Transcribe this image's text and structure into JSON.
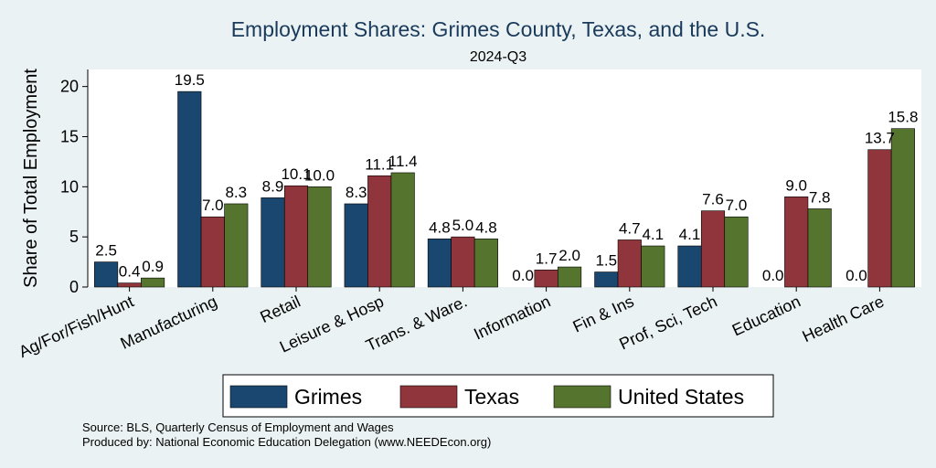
{
  "chart_data": {
    "type": "bar",
    "title": "Employment Shares: Grimes County, Texas, and the U.S.",
    "subtitle": "2024-Q3",
    "ylabel": "Share of Total Employment",
    "xlabel": "",
    "ylim": [
      0,
      21.7
    ],
    "yticks": [
      0,
      5,
      10,
      15,
      20
    ],
    "categories": [
      "Ag/For/Fish/Hunt",
      "Manufacturing",
      "Retail",
      "Leisure & Hosp",
      "Trans. & Ware.",
      "Information",
      "Fin & Ins",
      "Prof, Sci, Tech",
      "Education",
      "Health Care"
    ],
    "series": [
      {
        "name": "Grimes",
        "color": "#1a476f",
        "values": [
          2.5,
          19.5,
          8.9,
          8.3,
          4.8,
          0.0,
          1.5,
          4.1,
          0.0,
          0.0
        ],
        "labels": [
          "2.5",
          "19.5",
          "8.9",
          "8.3",
          "4.8",
          "0.0",
          "1.5",
          "4.1",
          "0.0",
          "0.0"
        ]
      },
      {
        "name": "Texas",
        "color": "#90353b",
        "values": [
          0.4,
          7.0,
          10.1,
          11.1,
          5.0,
          1.7,
          4.7,
          7.6,
          9.0,
          13.7
        ],
        "labels": [
          "0.4",
          "7.0",
          "10.1",
          "11.1",
          "5.0",
          "1.7",
          "4.7",
          "7.6",
          "9.0",
          "13.7"
        ]
      },
      {
        "name": "United States",
        "color": "#55752f",
        "values": [
          0.9,
          8.3,
          10.0,
          11.4,
          4.8,
          2.0,
          4.1,
          7.0,
          7.8,
          15.8
        ],
        "labels": [
          "0.9",
          "8.3",
          "10.0",
          "11.4",
          "4.8",
          "2.0",
          "4.1",
          "7.0",
          "7.8",
          "15.8"
        ]
      }
    ],
    "grid": false,
    "legend_position": "bottom"
  },
  "footer": {
    "source": "Source: BLS, Quarterly Census of Employment and Wages",
    "produced": "Produced by: National Economic Education Delegation (www.NEEDEcon.org)"
  }
}
